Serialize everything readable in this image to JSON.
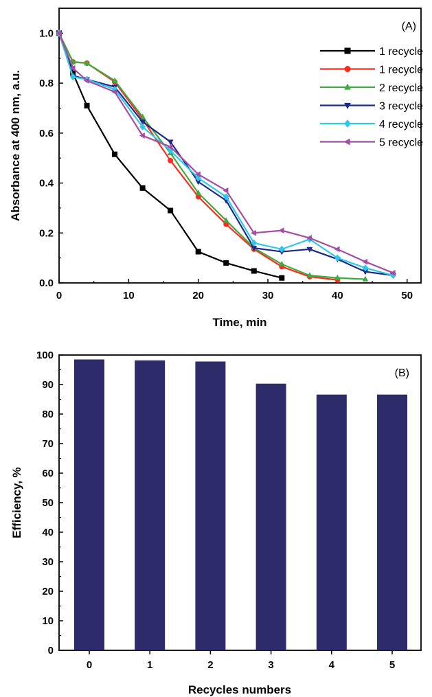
{
  "chart_data": [
    {
      "type": "line",
      "panel_label": "(A)",
      "xlabel": "Time, min",
      "ylabel": "Absorbance at 400 nm, a.u.",
      "xlim": [
        0,
        52
      ],
      "ylim": [
        0,
        1.1
      ],
      "x_ticks": [
        "0",
        "10",
        "20",
        "30",
        "40",
        "50"
      ],
      "y_ticks": [
        "0.0",
        "0.2",
        "0.4",
        "0.6",
        "0.8",
        "1.0"
      ],
      "legend_position": "top-right",
      "series": [
        {
          "name": "1 recycle",
          "color": "#000000",
          "marker": "square",
          "x": [
            0,
            2,
            4,
            8,
            12,
            16,
            20,
            24,
            28,
            32
          ],
          "y": [
            1.0,
            0.84,
            0.71,
            0.515,
            0.38,
            0.29,
            0.125,
            0.08,
            0.048,
            0.02
          ]
        },
        {
          "name": "1 recycle",
          "color": "#ff2a1a",
          "marker": "circle",
          "x": [
            0,
            2,
            4,
            8,
            12,
            16,
            20,
            24,
            28,
            32,
            36,
            40
          ],
          "y": [
            1.0,
            0.885,
            0.88,
            0.805,
            0.655,
            0.49,
            0.345,
            0.235,
            0.135,
            0.065,
            0.025,
            0.012
          ]
        },
        {
          "name": "2 recycle",
          "color": "#3faa3f",
          "marker": "triangle-up",
          "x": [
            0,
            2,
            4,
            8,
            12,
            16,
            20,
            24,
            28,
            32,
            36,
            40,
            44
          ],
          "y": [
            1.0,
            0.885,
            0.88,
            0.81,
            0.665,
            0.52,
            0.36,
            0.25,
            0.14,
            0.075,
            0.03,
            0.02,
            0.015
          ]
        },
        {
          "name": "3 recycle",
          "color": "#1c2a8c",
          "marker": "triangle-down",
          "x": [
            0,
            2,
            4,
            8,
            12,
            16,
            20,
            24,
            28,
            32,
            36,
            40,
            44,
            48
          ],
          "y": [
            1.0,
            0.83,
            0.815,
            0.785,
            0.645,
            0.565,
            0.405,
            0.33,
            0.14,
            0.125,
            0.135,
            0.095,
            0.045,
            0.03
          ]
        },
        {
          "name": "4 recycle",
          "color": "#2ec8e8",
          "marker": "diamond",
          "x": [
            0,
            2,
            4,
            8,
            12,
            16,
            20,
            24,
            28,
            32,
            36,
            40,
            44,
            48
          ],
          "y": [
            1.0,
            0.825,
            0.815,
            0.775,
            0.625,
            0.53,
            0.42,
            0.345,
            0.16,
            0.135,
            0.175,
            0.1,
            0.06,
            0.03
          ]
        },
        {
          "name": "5 recycle",
          "color": "#a64ca6",
          "marker": "triangle-left",
          "x": [
            0,
            2,
            4,
            8,
            12,
            16,
            20,
            24,
            28,
            32,
            36,
            40,
            44,
            48
          ],
          "y": [
            1.0,
            0.86,
            0.81,
            0.765,
            0.59,
            0.545,
            0.435,
            0.37,
            0.2,
            0.21,
            0.18,
            0.135,
            0.085,
            0.04
          ]
        }
      ]
    },
    {
      "type": "bar",
      "panel_label": "(B)",
      "xlabel": "Recycles numbers",
      "ylabel": "Efficiency, %",
      "ylim": [
        0,
        100
      ],
      "y_ticks": [
        "0",
        "10",
        "20",
        "30",
        "40",
        "50",
        "60",
        "70",
        "80",
        "90",
        "100"
      ],
      "categories": [
        "0",
        "1",
        "2",
        "3",
        "4",
        "5"
      ],
      "values": [
        98.5,
        98.2,
        97.8,
        90.3,
        86.6,
        86.6
      ],
      "bar_color": "#2e2b6b"
    }
  ]
}
